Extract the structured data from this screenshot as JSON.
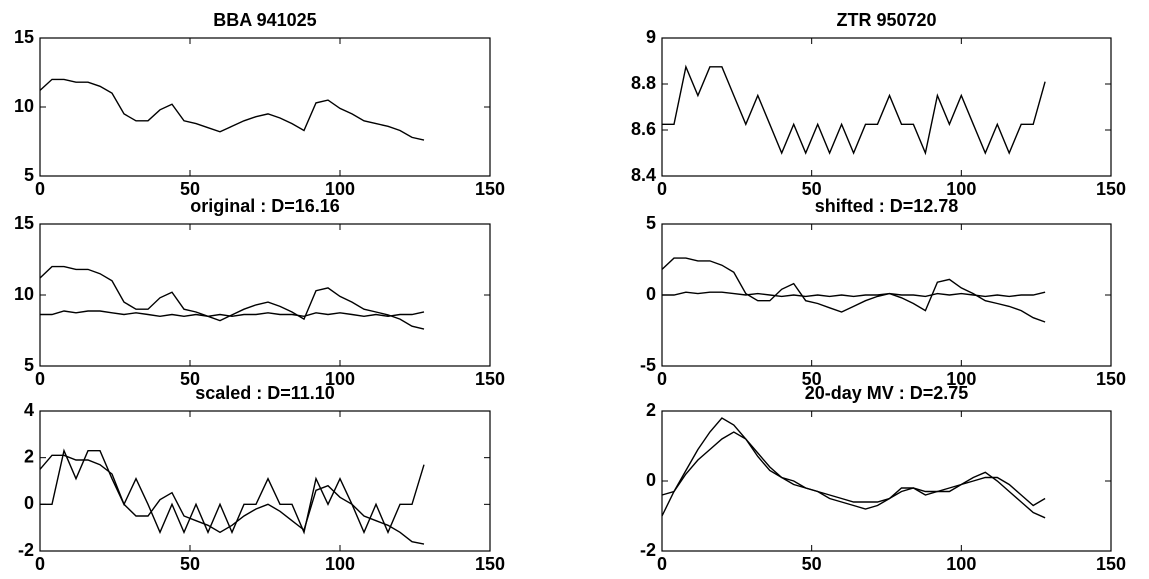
{
  "chart_data": [
    {
      "type": "line",
      "title": "BBA 941025",
      "x": [
        0,
        4,
        8,
        12,
        16,
        20,
        24,
        28,
        32,
        36,
        40,
        44,
        48,
        52,
        56,
        60,
        64,
        68,
        72,
        76,
        80,
        84,
        88,
        92,
        96,
        100,
        104,
        108,
        112,
        116,
        120,
        124,
        128
      ],
      "series": [
        {
          "color": "#000000",
          "values": [
            11.2,
            12,
            12,
            11.8,
            11.8,
            11.5,
            11,
            9.5,
            9,
            9,
            9.8,
            10.2,
            9,
            8.8,
            8.5,
            8.2,
            8.6,
            9,
            9.3,
            9.5,
            9.2,
            8.8,
            8.3,
            10.3,
            10.5,
            9.9,
            9.5,
            9,
            8.8,
            8.6,
            8.3,
            7.8,
            7.6
          ]
        }
      ],
      "xlim": [
        0,
        150
      ],
      "ylim": [
        5,
        15
      ],
      "xticks": [
        0,
        50,
        100,
        150
      ],
      "yticks": [
        5,
        10,
        15
      ]
    },
    {
      "type": "line",
      "title": "ZTR 950720",
      "x": [
        0,
        4,
        8,
        12,
        16,
        20,
        24,
        28,
        32,
        36,
        40,
        44,
        48,
        52,
        56,
        60,
        64,
        68,
        72,
        76,
        80,
        84,
        88,
        92,
        96,
        100,
        104,
        108,
        112,
        116,
        120,
        124,
        128
      ],
      "series": [
        {
          "color": "#000000",
          "values": [
            8.625,
            8.625,
            8.875,
            8.75,
            8.875,
            8.875,
            8.75,
            8.625,
            8.75,
            8.625,
            8.5,
            8.625,
            8.5,
            8.625,
            8.5,
            8.625,
            8.5,
            8.625,
            8.625,
            8.75,
            8.625,
            8.625,
            8.5,
            8.75,
            8.625,
            8.75,
            8.625,
            8.5,
            8.625,
            8.5,
            8.625,
            8.625,
            8.81
          ]
        }
      ],
      "xlim": [
        0,
        150
      ],
      "ylim": [
        8.4,
        9
      ],
      "xticks": [
        0,
        50,
        100,
        150
      ],
      "yticks": [
        8.4,
        8.6,
        8.8,
        9
      ]
    },
    {
      "type": "line",
      "title": "original : D=16.16",
      "x": [
        0,
        4,
        8,
        12,
        16,
        20,
        24,
        28,
        32,
        36,
        40,
        44,
        48,
        52,
        56,
        60,
        64,
        68,
        72,
        76,
        80,
        84,
        88,
        92,
        96,
        100,
        104,
        108,
        112,
        116,
        120,
        124,
        128
      ],
      "series": [
        {
          "color": "#000000",
          "values": [
            11.2,
            12,
            12,
            11.8,
            11.8,
            11.5,
            11,
            9.5,
            9,
            9,
            9.8,
            10.2,
            9,
            8.8,
            8.5,
            8.2,
            8.6,
            9,
            9.3,
            9.5,
            9.2,
            8.8,
            8.3,
            10.3,
            10.5,
            9.9,
            9.5,
            9,
            8.8,
            8.6,
            8.3,
            7.8,
            7.6
          ]
        },
        {
          "color": "#000000",
          "values": [
            8.625,
            8.625,
            8.875,
            8.75,
            8.875,
            8.875,
            8.75,
            8.625,
            8.75,
            8.625,
            8.5,
            8.625,
            8.5,
            8.625,
            8.5,
            8.625,
            8.5,
            8.625,
            8.625,
            8.75,
            8.625,
            8.625,
            8.5,
            8.75,
            8.625,
            8.75,
            8.625,
            8.5,
            8.625,
            8.5,
            8.625,
            8.625,
            8.81
          ]
        }
      ],
      "xlim": [
        0,
        150
      ],
      "ylim": [
        5,
        15
      ],
      "xticks": [
        0,
        50,
        100,
        150
      ],
      "yticks": [
        5,
        10,
        15
      ]
    },
    {
      "type": "line",
      "title": "shifted : D=12.78",
      "x": [
        0,
        4,
        8,
        12,
        16,
        20,
        24,
        28,
        32,
        36,
        40,
        44,
        48,
        52,
        56,
        60,
        64,
        68,
        72,
        76,
        80,
        84,
        88,
        92,
        96,
        100,
        104,
        108,
        112,
        116,
        120,
        124,
        128
      ],
      "series": [
        {
          "color": "#000000",
          "values": [
            1.8,
            2.6,
            2.6,
            2.4,
            2.4,
            2.1,
            1.6,
            0.1,
            -0.4,
            -0.4,
            0.4,
            0.8,
            -0.4,
            -0.6,
            -0.9,
            -1.2,
            -0.8,
            -0.4,
            -0.1,
            0.1,
            -0.2,
            -0.6,
            -1.1,
            0.9,
            1.1,
            0.5,
            0.1,
            -0.4,
            -0.6,
            -0.8,
            -1.1,
            -1.6,
            -1.9
          ]
        },
        {
          "color": "#000000",
          "values": [
            0,
            0,
            0.2,
            0.1,
            0.2,
            0.2,
            0.1,
            0,
            0.1,
            0,
            -0.1,
            0,
            -0.1,
            0,
            -0.1,
            0,
            -0.1,
            0,
            0,
            0.1,
            0,
            0,
            -0.1,
            0.1,
            0,
            0.1,
            0,
            -0.1,
            0,
            -0.1,
            0,
            0,
            0.2
          ]
        }
      ],
      "xlim": [
        0,
        150
      ],
      "ylim": [
        -5,
        5
      ],
      "xticks": [
        0,
        50,
        100,
        150
      ],
      "yticks": [
        -5,
        0,
        5
      ]
    },
    {
      "type": "line",
      "title": "scaled : D=11.10",
      "x": [
        0,
        4,
        8,
        12,
        16,
        20,
        24,
        28,
        32,
        36,
        40,
        44,
        48,
        52,
        56,
        60,
        64,
        68,
        72,
        76,
        80,
        84,
        88,
        92,
        96,
        100,
        104,
        108,
        112,
        116,
        120,
        124,
        128
      ],
      "series": [
        {
          "color": "#000000",
          "values": [
            1.5,
            2.1,
            2.1,
            1.9,
            1.9,
            1.7,
            1.3,
            0,
            -0.5,
            -0.5,
            0.2,
            0.5,
            -0.5,
            -0.7,
            -0.9,
            -1.2,
            -0.9,
            -0.5,
            -0.2,
            0,
            -0.3,
            -0.7,
            -1.1,
            0.6,
            0.8,
            0.3,
            0,
            -0.5,
            -0.7,
            -0.9,
            -1.2,
            -1.6,
            -1.7
          ]
        },
        {
          "color": "#000000",
          "values": [
            0,
            0,
            2.3,
            1.1,
            2.3,
            2.3,
            1.1,
            0,
            1.1,
            0,
            -1.2,
            0,
            -1.2,
            0,
            -1.2,
            0,
            -1.2,
            0,
            0,
            1.1,
            0,
            0,
            -1.2,
            1.1,
            0,
            1.1,
            0,
            -1.2,
            0,
            -1.2,
            0,
            0,
            1.7
          ]
        }
      ],
      "xlim": [
        0,
        150
      ],
      "ylim": [
        -2,
        4
      ],
      "xticks": [
        0,
        50,
        100,
        150
      ],
      "yticks": [
        -2,
        0,
        2,
        4
      ]
    },
    {
      "type": "line",
      "title": "20-day MV : D=2.75",
      "x": [
        0,
        4,
        8,
        12,
        16,
        20,
        24,
        28,
        32,
        36,
        40,
        44,
        48,
        52,
        56,
        60,
        64,
        68,
        72,
        76,
        80,
        84,
        88,
        92,
        96,
        100,
        104,
        108,
        112,
        116,
        120,
        124,
        128
      ],
      "series": [
        {
          "color": "#000000",
          "values": [
            -1,
            -0.3,
            0.3,
            0.9,
            1.4,
            1.8,
            1.6,
            1.2,
            0.7,
            0.3,
            0.1,
            -0.1,
            -0.2,
            -0.3,
            -0.5,
            -0.6,
            -0.7,
            -0.8,
            -0.7,
            -0.5,
            -0.2,
            -0.2,
            -0.4,
            -0.3,
            -0.2,
            -0.1,
            0.1,
            0.25,
            0,
            -0.3,
            -0.6,
            -0.9,
            -1.05
          ]
        },
        {
          "color": "#000000",
          "values": [
            -0.4,
            -0.3,
            0.2,
            0.6,
            0.9,
            1.2,
            1.4,
            1.2,
            0.8,
            0.4,
            0.1,
            0,
            -0.2,
            -0.3,
            -0.4,
            -0.5,
            -0.6,
            -0.6,
            -0.6,
            -0.5,
            -0.3,
            -0.2,
            -0.3,
            -0.3,
            -0.3,
            -0.1,
            0,
            0.1,
            0.1,
            -0.1,
            -0.4,
            -0.7,
            -0.5
          ]
        }
      ],
      "xlim": [
        0,
        150
      ],
      "ylim": [
        -2,
        2
      ],
      "xticks": [
        0,
        50,
        100,
        150
      ],
      "yticks": [
        -2,
        0,
        2
      ]
    }
  ]
}
